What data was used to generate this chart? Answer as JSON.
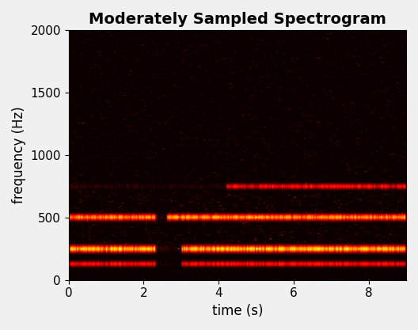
{
  "title": "Moderately Sampled Spectrogram",
  "xlabel": "time (s)",
  "ylabel": "frequency (Hz)",
  "xlim": [
    0,
    9.0
  ],
  "ylim": [
    0,
    2000
  ],
  "xticks": [
    0,
    2,
    4,
    6,
    8
  ],
  "yticks": [
    0,
    500,
    1000,
    1500,
    2000
  ],
  "time_duration": 9.0,
  "max_freq": 2000,
  "title_fontsize": 14,
  "label_fontsize": 12,
  "tick_fontsize": 11,
  "bg_color": "#f0f0f0",
  "seed": 42,
  "n_time": 300,
  "n_freq": 300
}
